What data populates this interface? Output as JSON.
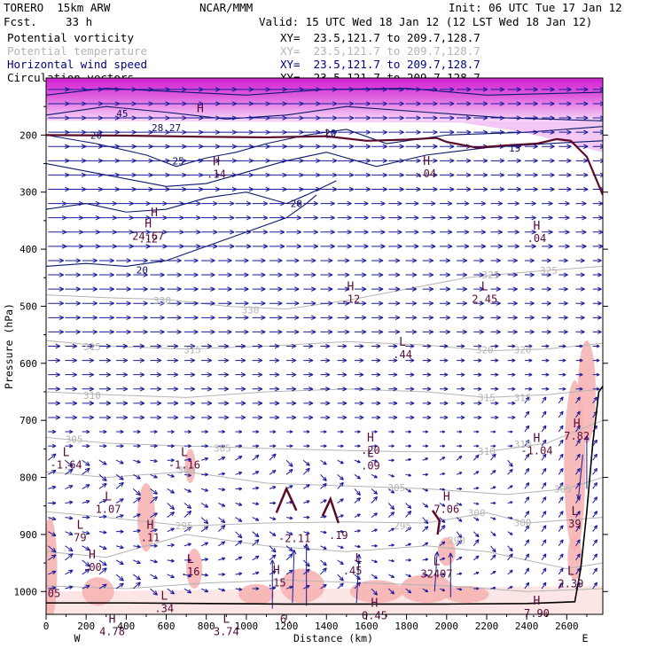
{
  "header": {
    "model": "TORERO  15km ARW",
    "org": "NCAR/MMM",
    "init": "Init: 06 UTC Tue 17 Jan 12",
    "fcst_label": "Fcst.",
    "fcst_value": "33 h",
    "valid": "Valid: 15 UTC Wed 18 Jan 12 (12 LST Wed 18 Jan 12)"
  },
  "fields": [
    {
      "name": "Potential vorticity",
      "color": "#000000",
      "xy": "XY=  23.5,121.7 to 209.7,128.7"
    },
    {
      "name": "Potential temperature",
      "color": "#b4b4b4",
      "xy": "XY=  23.5,121.7 to 209.7,128.7"
    },
    {
      "name": "Horizontal wind speed",
      "color": "#000080",
      "xy": "XY=  23.5,121.7 to 209.7,128.7"
    },
    {
      "name": "Circulation vectors",
      "color": "#000000",
      "xy": "XY=  23.5,121.7 to 209.7,128.7"
    }
  ],
  "chart_data": {
    "type": "cross-section",
    "xlabel": "Distance (km)",
    "ylabel": "Pressure (hPa)",
    "xlim": [
      0,
      2780
    ],
    "ylim": [
      1040,
      100
    ],
    "x_ticks": [
      0,
      200,
      400,
      600,
      800,
      1000,
      1200,
      1400,
      1600,
      1800,
      2000,
      2200,
      2400,
      2600
    ],
    "y_ticks": [
      200,
      300,
      400,
      500,
      600,
      700,
      800,
      900,
      1000
    ],
    "end_labels": {
      "left": "W",
      "right": "E"
    },
    "colors": {
      "vector": "#1a1a9a",
      "wind_contour": "#0a1a6a",
      "theta": "#b4b4b4",
      "pv_line": "#5a0a2a",
      "pv_shade": "#e040e0",
      "low_shade": "#f6b4b4",
      "hl_label": "#5a0a3a"
    },
    "theta_labels": [
      {
        "x": 580,
        "p": 490,
        "text": "330"
      },
      {
        "x": 1020,
        "p": 506,
        "text": "330"
      },
      {
        "x": 2220,
        "p": 445,
        "text": "325"
      },
      {
        "x": 2510,
        "p": 437,
        "text": "325"
      },
      {
        "x": 230,
        "p": 571,
        "text": "315"
      },
      {
        "x": 730,
        "p": 576,
        "text": "315"
      },
      {
        "x": 2190,
        "p": 576,
        "text": "320"
      },
      {
        "x": 2380,
        "p": 576,
        "text": "320"
      },
      {
        "x": 2200,
        "p": 660,
        "text": "315"
      },
      {
        "x": 2380,
        "p": 660,
        "text": "315"
      },
      {
        "x": 230,
        "p": 656,
        "text": "310"
      },
      {
        "x": 2200,
        "p": 754,
        "text": "310"
      },
      {
        "x": 2380,
        "p": 742,
        "text": "310"
      },
      {
        "x": 140,
        "p": 733,
        "text": "305"
      },
      {
        "x": 880,
        "p": 749,
        "text": "305"
      },
      {
        "x": 1750,
        "p": 818,
        "text": "305"
      },
      {
        "x": 2580,
        "p": 820,
        "text": "305"
      },
      {
        "x": 700,
        "p": 787,
        "text": "300"
      },
      {
        "x": 2150,
        "p": 862,
        "text": "300"
      },
      {
        "x": 2380,
        "p": 879,
        "text": "300"
      },
      {
        "x": 690,
        "p": 885,
        "text": "295"
      },
      {
        "x": 1780,
        "p": 885,
        "text": "295"
      },
      {
        "x": 2050,
        "p": 910,
        "text": "290"
      }
    ],
    "wind_labels": [
      {
        "x": 250,
        "p": 200,
        "text": "20"
      },
      {
        "x": 380,
        "p": 162,
        "text": "45"
      },
      {
        "x": 600,
        "p": 187,
        "text": "28.27"
      },
      {
        "x": 660,
        "p": 245,
        "text": "25"
      },
      {
        "x": 1420,
        "p": 196,
        "text": "20"
      },
      {
        "x": 1250,
        "p": 320,
        "text": "20"
      },
      {
        "x": 480,
        "p": 436,
        "text": "20"
      },
      {
        "x": 2340,
        "p": 223,
        "text": "15"
      }
    ],
    "hl_markers": [
      {
        "x": 770,
        "p": 160,
        "type": "H",
        "value": ""
      },
      {
        "x": 850,
        "p": 253,
        "type": "H",
        "value": ".14"
      },
      {
        "x": 1410,
        "p": 205,
        "type": "L",
        "value": ""
      },
      {
        "x": 1900,
        "p": 252,
        "type": "H",
        "value": ".04"
      },
      {
        "x": 540,
        "p": 342,
        "type": "H",
        "value": ""
      },
      {
        "x": 510,
        "p": 362,
        "type": "H",
        "value": "24.67"
      },
      {
        "x": 510,
        "p": 388,
        "type": "",
        "value": ".12"
      },
      {
        "x": 2450,
        "p": 366,
        "type": "H",
        "value": ".04"
      },
      {
        "x": 1520,
        "p": 472,
        "type": "H",
        "value": ".12"
      },
      {
        "x": 2190,
        "p": 472,
        "type": "L",
        "value": "2.45"
      },
      {
        "x": 1780,
        "p": 569,
        "type": "L",
        "value": ".44"
      },
      {
        "x": 2650,
        "p": 712,
        "type": "H",
        "value": "7.82"
      },
      {
        "x": 1620,
        "p": 737,
        "type": "H",
        "value": ".20"
      },
      {
        "x": 2450,
        "p": 738,
        "type": "H",
        "value": "-1.04"
      },
      {
        "x": 100,
        "p": 763,
        "type": "L",
        "value": "-1.64"
      },
      {
        "x": 690,
        "p": 763,
        "type": "L",
        "value": "-1.16"
      },
      {
        "x": 1620,
        "p": 764,
        "type": "L",
        "value": ".09"
      },
      {
        "x": 2000,
        "p": 840,
        "type": "H",
        "value": "7.06"
      },
      {
        "x": 310,
        "p": 840,
        "type": "L",
        "value": "1.07"
      },
      {
        "x": 2640,
        "p": 866,
        "type": "L",
        "value": "39"
      },
      {
        "x": 170,
        "p": 890,
        "type": "L",
        "value": "79"
      },
      {
        "x": 520,
        "p": 890,
        "type": "H",
        "value": ".11"
      },
      {
        "x": 1240,
        "p": 913,
        "type": "",
        "value": "-2.11"
      },
      {
        "x": 1460,
        "p": 908,
        "type": "",
        "value": ".19"
      },
      {
        "x": 1560,
        "p": 948,
        "type": "L",
        "value": ""
      },
      {
        "x": 1950,
        "p": 954,
        "type": "L",
        "value": "32407"
      },
      {
        "x": 230,
        "p": 942,
        "type": "H",
        "value": ".00"
      },
      {
        "x": 720,
        "p": 950,
        "type": "L",
        "value": ".16"
      },
      {
        "x": 1150,
        "p": 969,
        "type": "H",
        "value": ".15"
      },
      {
        "x": 1530,
        "p": 970,
        "type": "",
        "value": ".45"
      },
      {
        "x": 2620,
        "p": 971,
        "type": "L",
        "value": "2.39"
      },
      {
        "x": 590,
        "p": 1014,
        "type": "L",
        "value": ".34"
      },
      {
        "x": 40,
        "p": 1010,
        "type": "",
        "value": "05"
      },
      {
        "x": 1640,
        "p": 1027,
        "type": "H",
        "value": "0.45"
      },
      {
        "x": 2450,
        "p": 1023,
        "type": "H",
        "value": "7.90"
      },
      {
        "x": 330,
        "p": 1055,
        "type": "H",
        "value": "4.78"
      },
      {
        "x": 900,
        "p": 1055,
        "type": "L",
        "value": "3.74"
      },
      {
        "x": 1200,
        "p": 1055,
        "type": "",
        "value": "6."
      }
    ]
  }
}
